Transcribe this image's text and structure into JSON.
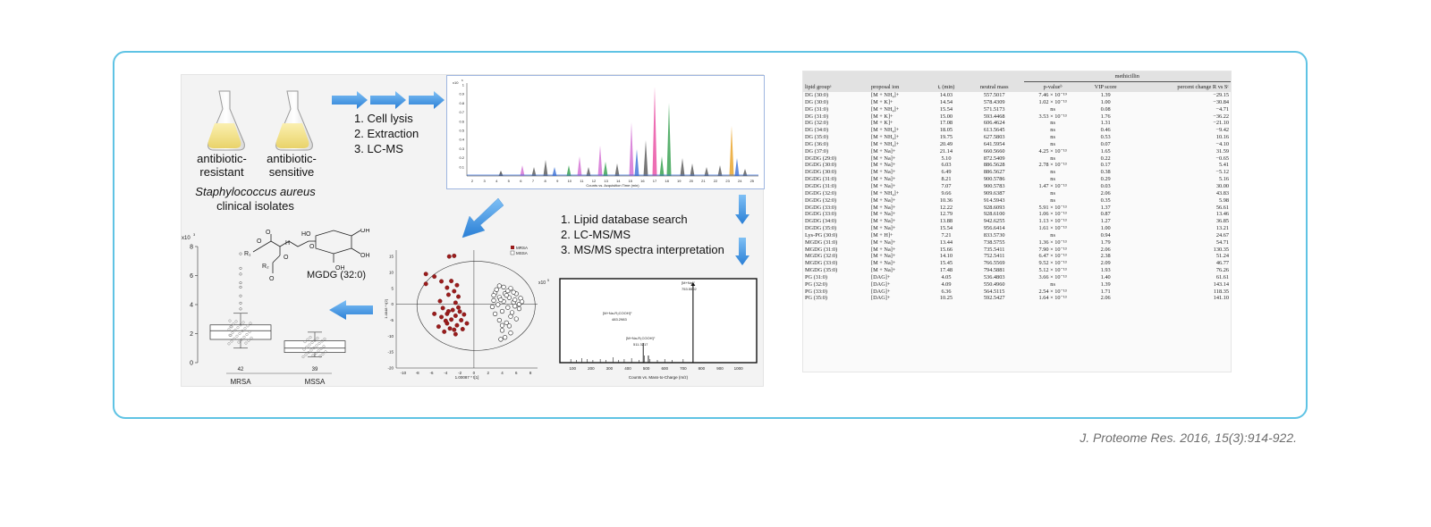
{
  "figure": {
    "flask_left_label": "antibiotic-\nresistant",
    "flask_right_label": "antibiotic-\nsensitive",
    "organism": "Staphylococcus aureus",
    "organism_sub": "clinical isolates",
    "steps_top": [
      "1. Cell lysis",
      "2. Extraction",
      "3. LC-MS"
    ],
    "steps_mid": [
      "1. Lipid database search",
      "2. LC-MS/MS",
      "3. MS/MS spectra interpretation"
    ],
    "chromatogram": {
      "scale": "x10",
      "scale_exp": "6",
      "xlabel": "Counts vs. Acquisition Time (min)",
      "yticks": [
        "1",
        "0.9",
        "0.8",
        "0.7",
        "0.6",
        "0.5",
        "0.4",
        "0.3",
        "0.2",
        "0.1"
      ],
      "xticks": [
        "2",
        "3",
        "4",
        "5",
        "6",
        "7",
        "8",
        "9",
        "10",
        "11",
        "12",
        "13",
        "14",
        "15",
        "16",
        "17",
        "18",
        "19",
        "20",
        "21",
        "22",
        "23",
        "24",
        "25"
      ]
    },
    "msms": {
      "scale": "x10",
      "scale_exp": "5",
      "xlabel": "Counts vs. Mass-to-Charge (m/z)",
      "xticks": [
        "100",
        "200",
        "300",
        "400",
        "500",
        "600",
        "700",
        "800",
        "900",
        "1000"
      ],
      "peak1_label": "[M+Na-R₂COOH]⁺",
      "peak1_mz": "483.2983",
      "peak2_label": "[M+Na-R₁COOH]⁺",
      "peak2_mz": "511.3217",
      "peak3_label": "[M+Na]⁺",
      "peak3_mz": "753.5502"
    },
    "pca": {
      "legend": [
        "MRSA",
        "MSSA"
      ],
      "xlabel": "1.00087 * t[1]",
      "ylabel": "1.4848 * t[2]",
      "xticks": [
        "-10",
        "-8",
        "-6",
        "-4",
        "-2",
        "0",
        "2",
        "4",
        "6",
        "8"
      ],
      "yticks": [
        "15",
        "10",
        "5",
        "0",
        "-5",
        "-10",
        "-15",
        "-20"
      ]
    },
    "boxplot": {
      "scale": "x10",
      "scale_exp": "3",
      "yticks": [
        "8",
        "6",
        "4",
        "2",
        "0"
      ],
      "counts": [
        "42",
        "39"
      ],
      "groups": [
        "MRSA",
        "MSSA"
      ],
      "compound": "MGDG (32:0)",
      "struct_labels": [
        "R₁",
        "R₂",
        "O",
        "O",
        "O",
        "OH",
        "OH",
        "HO",
        "OH",
        "O",
        "H",
        "O"
      ]
    }
  },
  "table": {
    "super_header": "methicillin",
    "headers": [
      "lipid groupᵃ",
      "proposal ion",
      "tᵣ (min)",
      "neutral mass",
      "p-valueᵇ",
      "VIP score",
      "percent change R vs Sᶜ"
    ],
    "rows": [
      [
        "DG (30:0)",
        "[M + NH₄]+",
        "14.03",
        "557.5017",
        "7.46 × 10⁻¹⁹",
        "1.39",
        "−29.15"
      ],
      [
        "DG (30:0)",
        "[M + K]+",
        "14.54",
        "578.4309",
        "1.02 × 10⁻¹³",
        "1.00",
        "−30.84"
      ],
      [
        "DG (31:0)",
        "[M + NH₄]+",
        "15.54",
        "571.5173",
        "ns",
        "0.08",
        "−4.71"
      ],
      [
        "DG (31:0)",
        "[M + K]+",
        "15.00",
        "593.4468",
        "3.53 × 10⁻¹³",
        "1.76",
        "−36.22"
      ],
      [
        "DG (32:0)",
        "[M + K]+",
        "17.08",
        "606.4624",
        "ns",
        "1.31",
        "−21.10"
      ],
      [
        "DG (34:0)",
        "[M + NH₄]+",
        "18.05",
        "613.5645",
        "ns",
        "0.46",
        "−9.42"
      ],
      [
        "DG (35:0)",
        "[M + NH₄]+",
        "19.75",
        "627.5803",
        "ns",
        "0.53",
        "10.16"
      ],
      [
        "DG (36:0)",
        "[M + NH₄]+",
        "20.49",
        "641.5954",
        "ns",
        "0.07",
        "−4.10"
      ],
      [
        "DG (37:0)",
        "[M + Na]+",
        "21.14",
        "660.5660",
        "4.25 × 10⁻¹³",
        "1.65",
        "31.59"
      ],
      [
        "DGDG (29:0)",
        "[M + Na]+",
        "5.10",
        "872.5409",
        "ns",
        "0.22",
        "−0.65"
      ],
      [
        "DGDG (30:0)",
        "[M + Na]+",
        "6.03",
        "886.5628",
        "2.78 × 10⁻¹³",
        "0.17",
        "5.41"
      ],
      [
        "DGDG (30:0)",
        "[M + Na]+",
        "6.49",
        "886.5627",
        "ns",
        "0.38",
        "−5.12"
      ],
      [
        "DGDG (31:0)",
        "[M + Na]+",
        "8.21",
        "900.5786",
        "ns",
        "0.29",
        "5.16"
      ],
      [
        "DGDG (31:0)",
        "[M + Na]+",
        "7.07",
        "900.5783",
        "1.47 × 10⁻¹³",
        "0.03",
        "30.00"
      ],
      [
        "DGDG (32:0)",
        "[M + NH₄]+",
        "9.66",
        "909.6387",
        "ns",
        "2.06",
        "43.83"
      ],
      [
        "DGDG (32:0)",
        "[M + Na]+",
        "10.36",
        "914.5943",
        "ns",
        "0.35",
        "5.98"
      ],
      [
        "DGDG (33:0)",
        "[M + Na]+",
        "12.22",
        "928.6093",
        "5.91 × 10⁻¹³",
        "1.37",
        "56.61"
      ],
      [
        "DGDG (33:0)",
        "[M + Na]+",
        "12.79",
        "928.6100",
        "1.06 × 10⁻¹³",
        "0.87",
        "13.46"
      ],
      [
        "DGDG (34:0)",
        "[M + Na]+",
        "13.88",
        "942.6255",
        "1.13 × 10⁻¹³",
        "1.27",
        "36.85"
      ],
      [
        "DGDG (35:0)",
        "[M + Na]+",
        "15.54",
        "956.6414",
        "1.61 × 10⁻¹³",
        "1.00",
        "13.21"
      ],
      [
        "Lys-PG (30:0)",
        "[M + H]+",
        "7.21",
        "833.5730",
        "ns",
        "0.94",
        "24.67"
      ],
      [
        "MGDG (31:0)",
        "[M + Na]+",
        "13.44",
        "738.5755",
        "1.36 × 10⁻¹³",
        "1.79",
        "54.71"
      ],
      [
        "MGDG (31:0)",
        "[M + Na]+",
        "15.66",
        "735.5411",
        "7.90 × 10⁻¹³",
        "2.06",
        "130.35"
      ],
      [
        "MGDG (32:0)",
        "[M + Na]+",
        "14.10",
        "752.5411",
        "6.47 × 10⁻¹³",
        "2.38",
        "51.24"
      ],
      [
        "MGDG (33:0)",
        "[M + Na]+",
        "15.45",
        "766.5569",
        "9.52 × 10⁻¹³",
        "2.09",
        "46.77"
      ],
      [
        "MGDG (35:0)",
        "[M + Na]+",
        "17.48",
        "794.5881",
        "5.12 × 10⁻¹³",
        "1.93",
        "76.26"
      ],
      [
        "PG (31:0)",
        "[DAG]+",
        "4.05",
        "536.4803",
        "3.66 × 10⁻¹³",
        "1.40",
        "61.61"
      ],
      [
        "PG (32:0)",
        "[DAG]+",
        "4.09",
        "550.4960",
        "ns",
        "1.39",
        "143.14"
      ],
      [
        "PG (33:0)",
        "[DAG]+",
        "6.36",
        "564.5115",
        "2.54 × 10⁻¹³",
        "1.71",
        "118.35"
      ],
      [
        "PG (35:0)",
        "[DAG]+",
        "10.25",
        "592.5427",
        "1.64 × 10⁻¹³",
        "2.06",
        "141.10"
      ]
    ]
  },
  "caption": "J. Proteome Res. 2016, 15(3):914-922.",
  "colors": {
    "frame": "#5fc3e4",
    "arrow": "#3a8fdc",
    "mrsa": "#9a1c1c",
    "mssa": "#ffffff"
  }
}
